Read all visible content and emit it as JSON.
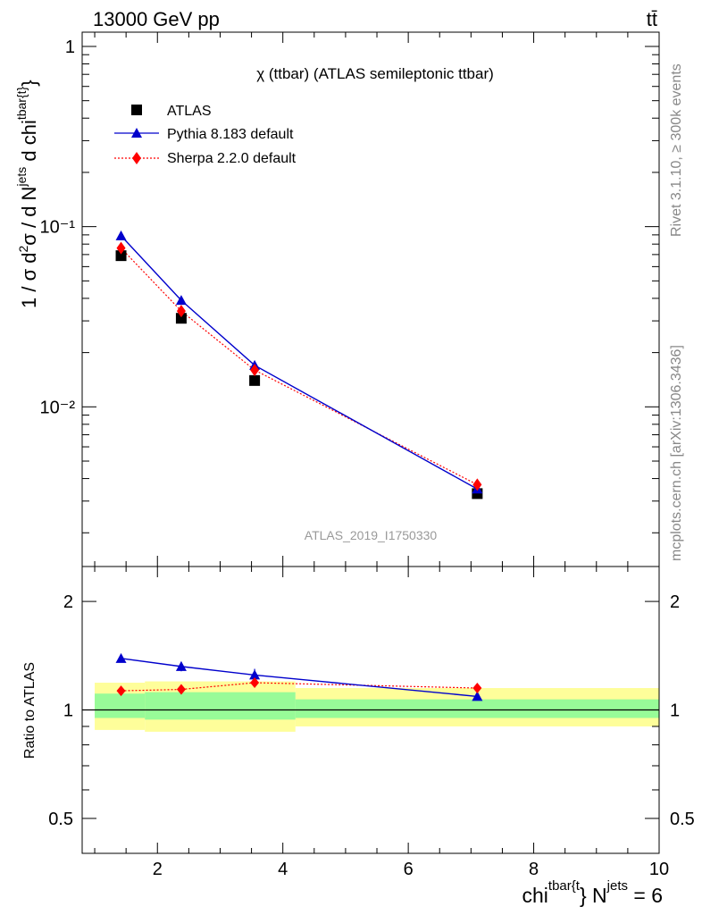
{
  "header": {
    "left": "13000 GeV pp",
    "right": "tt̄"
  },
  "side_labels": {
    "rivet": "Rivet 3.1.10, ≥ 300k events",
    "mcplots": "mcplots.cern.ch [arXiv:1306.3436]"
  },
  "colors": {
    "atlas": "#000000",
    "pythia": "#0000cc",
    "sherpa": "#ff0000",
    "band_outer": "#fefe9a",
    "band_inner": "#98fb98",
    "watermark": "#999999"
  },
  "chart_data": [
    {
      "type": "line",
      "title": "χ (ttbar) (ATLAS semileptonic ttbar)",
      "analysis": "ATLAS_2019_I1750330",
      "ylabel": "1 / σ d²σ / d N^jets d chi^tbar{t}",
      "yscale": "log",
      "ylim": [
        0.0013,
        1.2
      ],
      "xlim": [
        0.8,
        10.0
      ],
      "y_ticks": [
        {
          "value": 1,
          "label": "1"
        },
        {
          "value": 0.1,
          "label": "10⁻¹"
        },
        {
          "value": 0.01,
          "label": "10⁻²"
        }
      ],
      "legend": [
        "ATLAS",
        "Pythia 8.183 default",
        "Sherpa 2.2.0 default"
      ],
      "legend_position": "top-left",
      "series": [
        {
          "name": "ATLAS",
          "style": "square markers",
          "x": [
            1.42,
            2.38,
            3.55,
            7.1
          ],
          "y": [
            0.069,
            0.031,
            0.014,
            0.0033
          ]
        },
        {
          "name": "Pythia 8.183 default",
          "style": "solid line, triangles",
          "x": [
            1.42,
            2.38,
            3.55,
            7.1
          ],
          "y": [
            0.089,
            0.039,
            0.017,
            0.0035
          ]
        },
        {
          "name": "Sherpa 2.2.0 default",
          "style": "dotted line, diamonds",
          "x": [
            1.42,
            2.38,
            3.55,
            7.1
          ],
          "y": [
            0.076,
            0.034,
            0.016,
            0.0037
          ]
        }
      ]
    },
    {
      "type": "line",
      "ylabel": "Ratio to ATLAS",
      "xlabel": "chi^tbar{t} N^jets = 6",
      "yscale": "log",
      "ylim": [
        0.4,
        2.5
      ],
      "xlim": [
        0.8,
        10.0
      ],
      "x_ticks": [
        {
          "value": 2,
          "label": "2"
        },
        {
          "value": 4,
          "label": "4"
        },
        {
          "value": 6,
          "label": "6"
        },
        {
          "value": 8,
          "label": "8"
        },
        {
          "value": 10,
          "label": "10"
        }
      ],
      "y_ticks": [
        {
          "value": 2,
          "label": "2"
        },
        {
          "value": 1,
          "label": "1"
        },
        {
          "value": 0.5,
          "label": "0.5"
        }
      ],
      "bands": [
        {
          "x0": 1.0,
          "x1": 1.8,
          "outer": [
            0.88,
            1.19
          ],
          "inner": [
            0.95,
            1.11
          ]
        },
        {
          "x0": 1.8,
          "x1": 4.2,
          "outer": [
            0.87,
            1.2
          ],
          "inner": [
            0.94,
            1.12
          ]
        },
        {
          "x0": 4.2,
          "x1": 10.0,
          "outer": [
            0.9,
            1.15
          ],
          "inner": [
            0.95,
            1.07
          ]
        }
      ],
      "series": [
        {
          "name": "Pythia 8.183 default",
          "x": [
            1.42,
            2.38,
            3.55,
            7.1
          ],
          "y": [
            1.39,
            1.32,
            1.25,
            1.09
          ],
          "err": [
            0.02,
            0.04,
            0.05,
            0.02
          ]
        },
        {
          "name": "Sherpa 2.2.0 default",
          "x": [
            1.42,
            2.38,
            3.55,
            7.1
          ],
          "y": [
            1.13,
            1.14,
            1.19,
            1.15
          ],
          "err": [
            0.02,
            0.02,
            0.03,
            0.02
          ]
        }
      ]
    }
  ]
}
